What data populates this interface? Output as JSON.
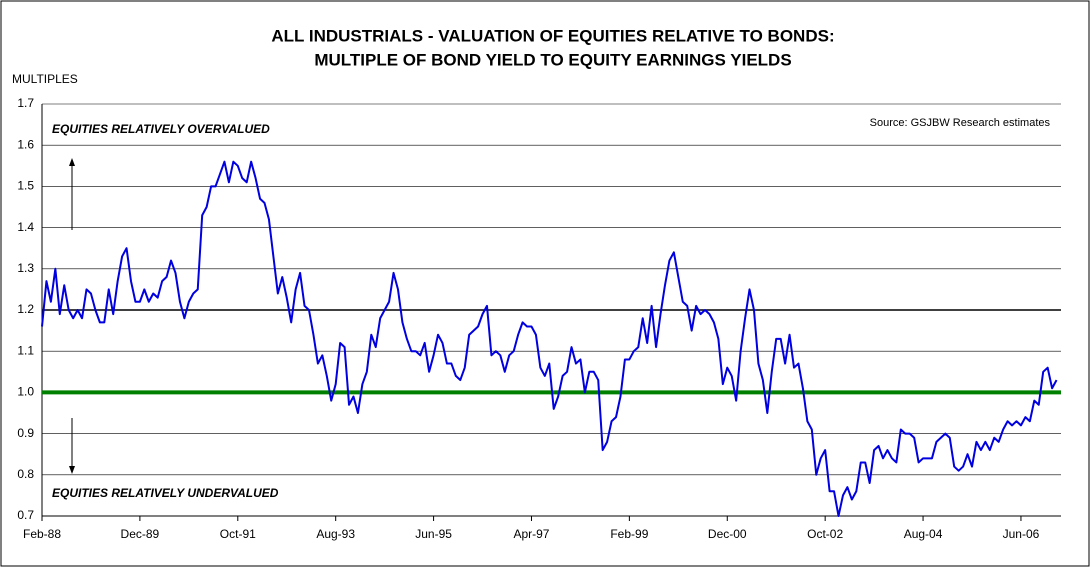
{
  "chart_data": {
    "type": "line",
    "title": [
      "ALL INDUSTRIALS - VALUATION OF EQUITIES RELATIVE TO BONDS:",
      "MULTIPLE OF BOND YIELD TO EQUITY EARNINGS YIELDS"
    ],
    "ylabel": "MULTIPLES",
    "annotations": [
      "EQUITIES RELATIVELY OVERVALUED",
      "EQUITIES RELATIVELY UNDERVALUED",
      "Source: GSJBW Research estimates"
    ],
    "categories": [
      "Feb-88",
      null,
      null,
      null,
      null,
      null,
      null,
      null,
      null,
      null,
      null,
      null,
      null,
      null,
      null,
      null,
      null,
      null,
      null,
      null,
      null,
      null,
      "Dec-89",
      null,
      null,
      null,
      null,
      null,
      null,
      null,
      null,
      null,
      null,
      null,
      null,
      null,
      null,
      null,
      null,
      null,
      null,
      null,
      null,
      null,
      "Oct-91",
      null,
      null,
      null,
      null,
      null,
      null,
      null,
      null,
      null,
      null,
      null,
      null,
      null,
      null,
      null,
      null,
      null,
      null,
      null,
      null,
      null,
      "Aug-93",
      null,
      null,
      null,
      null,
      null,
      null,
      null,
      null,
      null,
      null,
      null,
      null,
      null,
      null,
      null,
      null,
      null,
      null,
      null,
      null,
      null,
      "Jun-95",
      null,
      null,
      null,
      null,
      null,
      null,
      null,
      null,
      null,
      null,
      null,
      null,
      null,
      null,
      null,
      null,
      null,
      null,
      null,
      null,
      null,
      "Apr-97",
      null,
      null,
      null,
      null,
      null,
      null,
      null,
      null,
      null,
      null,
      null,
      null,
      null,
      null,
      null,
      null,
      null,
      null,
      null,
      null,
      null,
      "Feb-99",
      null,
      null,
      null,
      null,
      null,
      null,
      null,
      null,
      null,
      null,
      null,
      null,
      null,
      null,
      null,
      null,
      null,
      null,
      null,
      null,
      null,
      "Dec-00",
      null,
      null,
      null,
      null,
      null,
      null,
      null,
      null,
      null,
      null,
      null,
      null,
      null,
      null,
      null,
      null,
      null,
      null,
      null,
      null,
      null,
      "Oct-02",
      null,
      null,
      null,
      null,
      null,
      null,
      null,
      null,
      null,
      null,
      null,
      null,
      null,
      null,
      null,
      null,
      null,
      null,
      null,
      null,
      null,
      "Aug-04",
      null,
      null,
      null,
      null,
      null,
      null,
      null,
      null,
      null,
      null,
      null,
      null,
      null,
      null,
      null,
      null,
      null,
      null,
      null,
      null,
      null,
      "Jun-06",
      null,
      null,
      null,
      null,
      null,
      null,
      null,
      null
    ],
    "series": [
      {
        "color": "#0000e0",
        "values": [
          1.16,
          1.27,
          1.22,
          1.3,
          1.19,
          1.26,
          1.2,
          1.18,
          1.2,
          1.18,
          1.25,
          1.24,
          1.2,
          1.17,
          1.17,
          1.25,
          1.19,
          1.27,
          1.33,
          1.35,
          1.27,
          1.22,
          1.22,
          1.25,
          1.22,
          1.24,
          1.23,
          1.27,
          1.28,
          1.32,
          1.29,
          1.22,
          1.18,
          1.22,
          1.24,
          1.25,
          1.43,
          1.45,
          1.5,
          1.5,
          1.53,
          1.56,
          1.51,
          1.56,
          1.55,
          1.52,
          1.51,
          1.56,
          1.52,
          1.47,
          1.46,
          1.42,
          1.33,
          1.24,
          1.28,
          1.23,
          1.17,
          1.25,
          1.29,
          1.21,
          1.2,
          1.14,
          1.07,
          1.09,
          1.04,
          0.98,
          1.02,
          1.12,
          1.11,
          0.97,
          0.99,
          0.95,
          1.02,
          1.05,
          1.14,
          1.11,
          1.18,
          1.2,
          1.22,
          1.29,
          1.25,
          1.17,
          1.13,
          1.1,
          1.1,
          1.09,
          1.12,
          1.05,
          1.09,
          1.14,
          1.12,
          1.07,
          1.07,
          1.04,
          1.03,
          1.06,
          1.14,
          1.15,
          1.16,
          1.19,
          1.21,
          1.09,
          1.1,
          1.09,
          1.05,
          1.09,
          1.1,
          1.14,
          1.17,
          1.16,
          1.16,
          1.14,
          1.06,
          1.04,
          1.07,
          0.96,
          0.99,
          1.04,
          1.05,
          1.11,
          1.07,
          1.08,
          1.0,
          1.05,
          1.05,
          1.03,
          0.86,
          0.88,
          0.93,
          0.94,
          0.99,
          1.08,
          1.08,
          1.1,
          1.11,
          1.18,
          1.12,
          1.21,
          1.11,
          1.19,
          1.26,
          1.32,
          1.34,
          1.28,
          1.22,
          1.21,
          1.15,
          1.21,
          1.19,
          1.2,
          1.19,
          1.17,
          1.13,
          1.02,
          1.06,
          1.04,
          0.98,
          1.1,
          1.18,
          1.25,
          1.2,
          1.07,
          1.03,
          0.95,
          1.05,
          1.13,
          1.13,
          1.07,
          1.14,
          1.06,
          1.07,
          1.01,
          0.93,
          0.91,
          0.8,
          0.84,
          0.86,
          0.76,
          0.76,
          0.7,
          0.75,
          0.77,
          0.74,
          0.76,
          0.83,
          0.83,
          0.78,
          0.86,
          0.87,
          0.84,
          0.86,
          0.84,
          0.83,
          0.91,
          0.9,
          0.9,
          0.89,
          0.83,
          0.84,
          0.84,
          0.84,
          0.88,
          0.89,
          0.9,
          0.89,
          0.82,
          0.81,
          0.82,
          0.85,
          0.82,
          0.88,
          0.86,
          0.88,
          0.86,
          0.89,
          0.88,
          0.91,
          0.93,
          0.92,
          0.93,
          0.92,
          0.94,
          0.93,
          0.98,
          0.97,
          1.05,
          1.06,
          1.01,
          1.03
        ]
      }
    ],
    "ylim": [
      0.7,
      1.7
    ],
    "yticks": [
      0.7,
      0.8,
      0.9,
      {
        "value": 1,
        "label": "1.0"
      },
      1.1,
      1.2,
      1.3,
      1.4,
      1.5,
      1.6,
      1.7
    ],
    "grid": true,
    "reference_lines": [
      {
        "value": 1,
        "color": "#008000"
      },
      {
        "value": 1.2,
        "color": "#000000"
      }
    ]
  }
}
